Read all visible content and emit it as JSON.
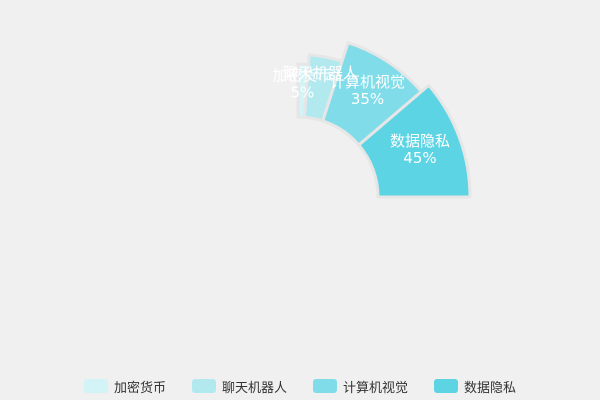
{
  "chart_data": {
    "type": "pie",
    "categories": [
      "加密货币",
      "聊天机器人",
      "计算机视觉",
      "数据隐私"
    ],
    "values": [
      5,
      15,
      35,
      45
    ],
    "labels": [
      {
        "name": "加密货币",
        "percent": "5%"
      },
      {
        "name": "聊天机器人",
        "percent": ""
      },
      {
        "name": "计算机视觉",
        "percent": "35%"
      },
      {
        "name": "数据隐私",
        "percent": "45%"
      }
    ],
    "colors": [
      "#d2f4f7",
      "#b2e9ef",
      "#7fdce8",
      "#5dd4e4"
    ],
    "legend_placement": "bottom"
  },
  "legend": {
    "items": [
      {
        "label": "加密货币",
        "color": "#d2f4f7"
      },
      {
        "label": "聊天机器人",
        "color": "#b2e9ef"
      },
      {
        "label": "计算机视觉",
        "color": "#7fdce8"
      },
      {
        "label": "数据隐私",
        "color": "#5dd4e4"
      }
    ]
  }
}
